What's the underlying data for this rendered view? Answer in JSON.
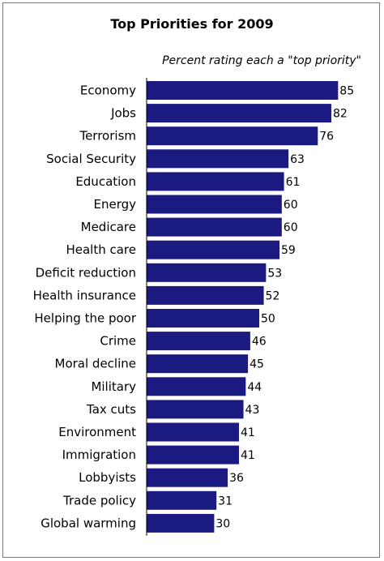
{
  "chart_data": {
    "type": "bar",
    "orientation": "horizontal",
    "title": "Top Priorities for 2009",
    "subtitle": "Percent rating each a \"top priority\"",
    "categories": [
      "Economy",
      "Jobs",
      "Terrorism",
      "Social Security",
      "Education",
      "Energy",
      "Medicare",
      "Health care",
      "Deficit reduction",
      "Health insurance",
      "Helping the poor",
      "Crime",
      "Moral decline",
      "Military",
      "Tax cuts",
      "Environment",
      "Immigration",
      "Lobbyists",
      "Trade policy",
      "Global warming"
    ],
    "values": [
      85,
      82,
      76,
      63,
      61,
      60,
      60,
      59,
      53,
      52,
      50,
      46,
      45,
      44,
      43,
      41,
      41,
      36,
      31,
      30
    ],
    "data_labels": [
      "85",
      "82",
      "76",
      "63",
      "61",
      "60",
      "60",
      "59",
      "53",
      "52",
      "50",
      "46",
      "45",
      "44",
      "43",
      "41",
      "41",
      "36",
      "31",
      "30"
    ],
    "xlim": [
      0,
      100
    ],
    "bar_color": "#1a1a80",
    "grid": false,
    "legend": "none"
  }
}
